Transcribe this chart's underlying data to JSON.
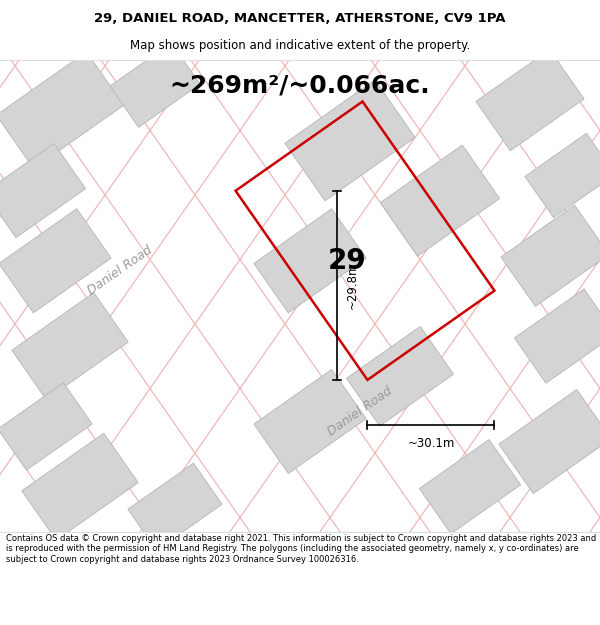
{
  "title_line1": "29, DANIEL ROAD, MANCETTER, ATHERSTONE, CV9 1PA",
  "title_line2": "Map shows position and indicative extent of the property.",
  "area_text": "~269m²/~0.066ac.",
  "number_label": "29",
  "dim_vertical": "~29.8m",
  "dim_horizontal": "~30.1m",
  "road_label_top": "Daniel Road",
  "road_label_bottom": "Daniel Road",
  "footer_text": "Contains OS data © Crown copyright and database right 2021. This information is subject to Crown copyright and database rights 2023 and is reproduced with the permission of HM Land Registry. The polygons (including the associated geometry, namely x, y co-ordinates) are subject to Crown copyright and database rights 2023 Ordnance Survey 100026316.",
  "bg_color": "#ffffff",
  "map_bg_color": "#f8f8f8",
  "plot_color": "#cc0000",
  "grid_line_color": "#f0b8b8",
  "building_color": "#d4d4d4",
  "building_edge_color": "#bbbbbb",
  "title_fontsize": 9.5,
  "subtitle_fontsize": 8.5,
  "area_fontsize": 18,
  "number_fontsize": 20,
  "dim_fontsize": 8.5,
  "road_fontsize": 9,
  "footer_fontsize": 6.0
}
